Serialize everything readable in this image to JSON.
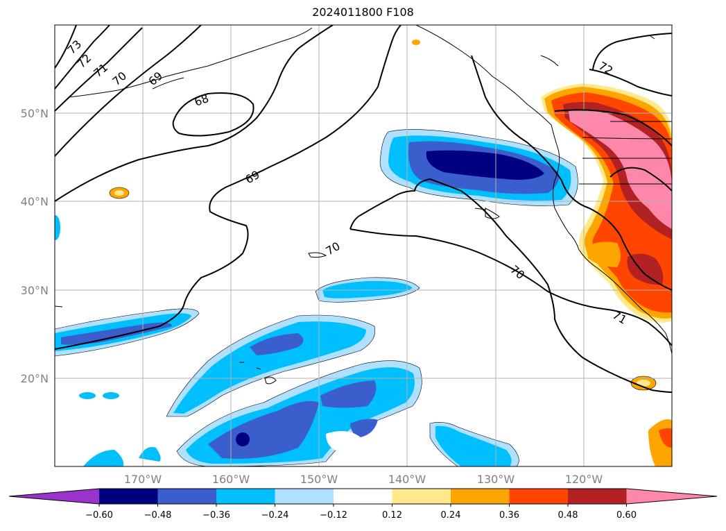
{
  "title": "2024011800 F108",
  "lat_labels": [
    "50°N",
    "40°N",
    "30°N",
    "20°N"
  ],
  "lon_labels": [
    "170°W",
    "160°W",
    "150°W",
    "140°W",
    "130°W",
    "120°W"
  ],
  "colorbar": {
    "ticks": [
      "−0.60",
      "−0.48",
      "−0.36",
      "−0.24",
      "−0.12",
      "0.12",
      "0.24",
      "0.36",
      "0.48",
      "0.60"
    ],
    "colors": [
      "#9933cc",
      "#000080",
      "#3a5fcd",
      "#00bfff",
      "#b0e0ff",
      "#ffffff",
      "#ffe98a",
      "#ffa500",
      "#ff4500",
      "#b22222",
      "#ff88aa"
    ]
  },
  "contour_labels": [
    "73",
    "72",
    "71",
    "70",
    "69",
    "68",
    "69",
    "70",
    "70",
    "71",
    "72"
  ]
}
